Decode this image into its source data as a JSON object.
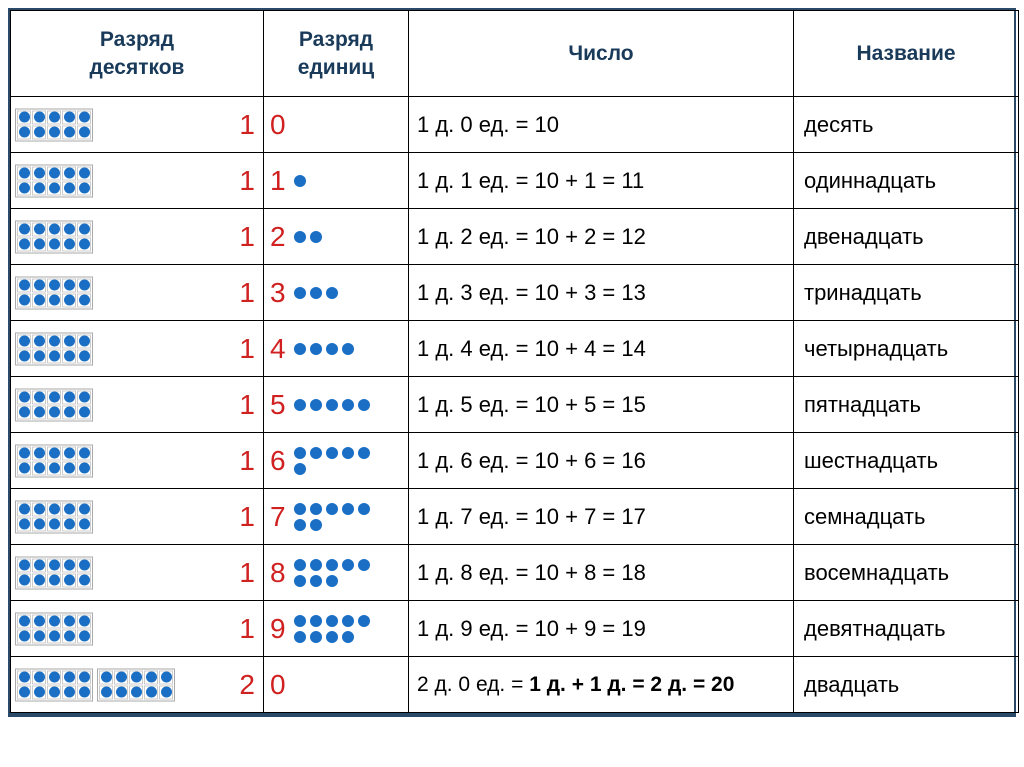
{
  "colors": {
    "border": "#2a4a6a",
    "header_text": "#1a3a5a",
    "digit": "#d02020",
    "dot": "#1a6fc4",
    "text": "#000000",
    "background": "#ffffff"
  },
  "fonts": {
    "header_size_pt": 16,
    "digit_size_pt": 21,
    "body_size_pt": 17
  },
  "headers": {
    "tens": "Разряд\nдесятков",
    "units": "Разряд\nединиц",
    "number": "Число",
    "name": "Название"
  },
  "rows": [
    {
      "tens_blocks": 1,
      "tens_digit": "1",
      "units_digit": "0",
      "units_dots_rows": [],
      "number_text": "1 д. 0 ед. = 10",
      "name": "десять"
    },
    {
      "tens_blocks": 1,
      "tens_digit": "1",
      "units_digit": "1",
      "units_dots_rows": [
        1
      ],
      "number_text": "1 д. 1 ед. = 10 + 1 = 11",
      "name": "одиннадцать"
    },
    {
      "tens_blocks": 1,
      "tens_digit": "1",
      "units_digit": "2",
      "units_dots_rows": [
        2
      ],
      "number_text": "1 д. 2 ед. = 10 + 2 = 12",
      "name": "двенадцать"
    },
    {
      "tens_blocks": 1,
      "tens_digit": "1",
      "units_digit": "3",
      "units_dots_rows": [
        3
      ],
      "number_text": "1 д. 3 ед. = 10 + 3 = 13",
      "name": "тринадцать"
    },
    {
      "tens_blocks": 1,
      "tens_digit": "1",
      "units_digit": "4",
      "units_dots_rows": [
        4
      ],
      "number_text": "1 д. 4 ед. = 10 + 4 = 14",
      "name": "четырнадцать"
    },
    {
      "tens_blocks": 1,
      "tens_digit": "1",
      "units_digit": "5",
      "units_dots_rows": [
        5
      ],
      "number_text": "1 д. 5 ед. = 10 + 5 = 15",
      "name": "пятнадцать"
    },
    {
      "tens_blocks": 1,
      "tens_digit": "1",
      "units_digit": "6",
      "units_dots_rows": [
        5,
        1
      ],
      "number_text": "1 д. 6 ед. = 10 + 6 = 16",
      "name": "шестнадцать"
    },
    {
      "tens_blocks": 1,
      "tens_digit": "1",
      "units_digit": "7",
      "units_dots_rows": [
        5,
        2
      ],
      "number_text": "1 д. 7 ед. = 10 + 7 = 17",
      "name": "семнадцать"
    },
    {
      "tens_blocks": 1,
      "tens_digit": "1",
      "units_digit": "8",
      "units_dots_rows": [
        5,
        3
      ],
      "number_text": "1 д. 8 ед. = 10 + 8 = 18",
      "name": "восемнадцать"
    },
    {
      "tens_blocks": 1,
      "tens_digit": "1",
      "units_digit": "9",
      "units_dots_rows": [
        5,
        4
      ],
      "number_text": "1 д. 9 ед. = 10 + 9 = 19",
      "name": "девятнадцать"
    },
    {
      "tens_blocks": 2,
      "tens_digit": "2",
      "units_digit": "0",
      "units_dots_rows": [],
      "number_text": "2 д. 0 ед. = 1 д. + 1 д. = 2 д. = 20",
      "name": "двадцать",
      "number_bold_tail": true
    }
  ]
}
